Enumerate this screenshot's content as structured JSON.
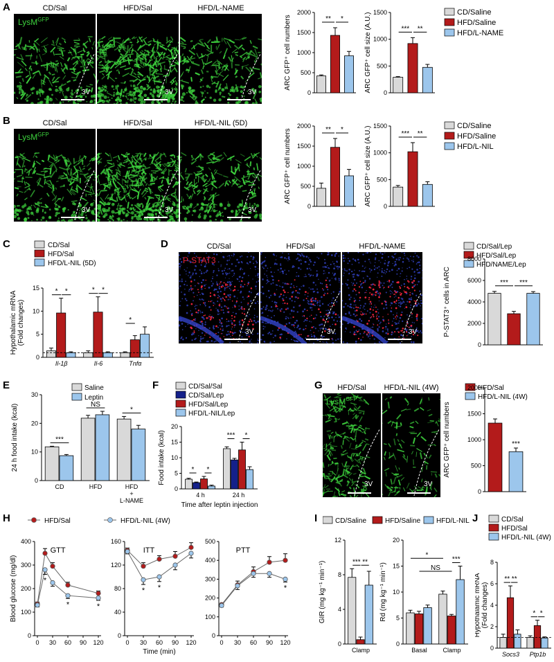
{
  "colors": {
    "gray": "#d9d9d9",
    "red": "#b31b1b",
    "blue": "#9cc6ec",
    "navy": "#14208a",
    "green": "#3dd13d",
    "pstat_red": "#e8243a",
    "pstat_blue": "#3344c8"
  },
  "panels": {
    "A": {
      "letter": "A",
      "images": [
        "CD/Sal",
        "HFD/Sal",
        "HFD/L-NAME"
      ],
      "lys": "LysM",
      "lys_sup": "GFP",
      "v3": "3V"
    },
    "B": {
      "letter": "B",
      "images": [
        "CD/Sal",
        "HFD/Sal",
        "HFD/L-NIL (5D)"
      ],
      "lys": "LysM",
      "lys_sup": "GFP",
      "v3": "3V"
    },
    "C": {
      "letter": "C"
    },
    "D": {
      "letter": "D",
      "images": [
        "CD/Sal",
        "HFD/Sal",
        "HFD/L-NAME"
      ],
      "pstat": "P-STAT3",
      "v3": "3V"
    },
    "E": {
      "letter": "E"
    },
    "F": {
      "letter": "F"
    },
    "G": {
      "letter": "G",
      "images": [
        "HFD/Sal",
        "HFD/L-NIL (4W)"
      ],
      "lys": "LysM",
      "lys_sup": "GFP",
      "v3": "3V"
    },
    "H": {
      "letter": "H"
    },
    "I": {
      "letter": "I"
    },
    "J": {
      "letter": "J"
    }
  },
  "chart_data": [
    {
      "id": "A1",
      "type": "bar",
      "categories": [
        "CD/Saline",
        "HFD/Saline",
        "HFD/L-NAME"
      ],
      "values": [
        420,
        1430,
        920
      ],
      "errors": [
        25,
        190,
        110
      ],
      "ylabel": "ARC GFP⁺ cell numbers",
      "ylim": [
        0,
        2000
      ],
      "yticks": [
        0,
        500,
        1000,
        1500,
        2000
      ],
      "sig": [
        {
          "from": 0,
          "to": 1,
          "label": "**"
        },
        {
          "from": 1,
          "to": 2,
          "label": "*"
        }
      ]
    },
    {
      "id": "A2",
      "type": "bar",
      "categories": [
        "CD/Saline",
        "HFD/Saline",
        "HFD/L-NAME"
      ],
      "values": [
        290,
        920,
        475
      ],
      "errors": [
        12,
        110,
        55
      ],
      "ylabel": "ARC GFP⁺ cell size (A.U.)",
      "ylim": [
        0,
        1500
      ],
      "yticks": [
        0,
        500,
        1000,
        1500
      ],
      "sig": [
        {
          "from": 0,
          "to": 1,
          "label": "***"
        },
        {
          "from": 1,
          "to": 2,
          "label": "**"
        }
      ]
    },
    {
      "id": "A_legend",
      "type": "legend",
      "entries": [
        "CD/Saline",
        "HFD/Saline",
        "HFD/L-NAME"
      ]
    },
    {
      "id": "B1",
      "type": "bar",
      "categories": [
        "CD/Saline",
        "HFD/Saline",
        "HFD/L-NIL"
      ],
      "values": [
        450,
        1470,
        760
      ],
      "errors": [
        130,
        220,
        160
      ],
      "ylabel": "ARC GFP⁺ cell numbers",
      "ylim": [
        0,
        2000
      ],
      "yticks": [
        0,
        500,
        1000,
        1500,
        2000
      ],
      "sig": [
        {
          "from": 0,
          "to": 1,
          "label": "**"
        },
        {
          "from": 1,
          "to": 2,
          "label": "*"
        }
      ]
    },
    {
      "id": "B2",
      "type": "bar",
      "categories": [
        "CD/Saline",
        "HFD/Saline",
        "HFD/L-NIL"
      ],
      "values": [
        360,
        1020,
        410
      ],
      "errors": [
        30,
        170,
        50
      ],
      "ylabel": "ARC GFP⁺ cell size (A.U.)",
      "ylim": [
        0,
        1500
      ],
      "yticks": [
        0,
        500,
        1000,
        1500
      ],
      "sig": [
        {
          "from": 0,
          "to": 1,
          "label": "***"
        },
        {
          "from": 1,
          "to": 2,
          "label": "**"
        }
      ]
    },
    {
      "id": "B_legend",
      "type": "legend",
      "entries": [
        "CD/Saline",
        "HFD/Saline",
        "HFD/L-NIL"
      ]
    },
    {
      "id": "C",
      "type": "bar",
      "categories": [
        "Il-1β",
        "Il-6",
        "Tnfα"
      ],
      "series": [
        {
          "name": "CD/Sal",
          "values": [
            1.4,
            1.0,
            1.0
          ],
          "errors": [
            0.6,
            0.4,
            0.2
          ]
        },
        {
          "name": "HFD/Sal",
          "values": [
            9.6,
            9.8,
            3.8
          ],
          "errors": [
            3.2,
            3.3,
            0.9
          ]
        },
        {
          "name": "HFD/L-NIL (5D)",
          "values": [
            1.0,
            1.0,
            5.0
          ],
          "errors": [
            0.2,
            0.2,
            1.6
          ]
        }
      ],
      "ylabel": "Hypothalamic mRNA\n(Fold changes)",
      "ylim": [
        0,
        15
      ],
      "yticks": [
        0,
        5,
        10,
        15
      ],
      "dashed_y": 1,
      "sig": [
        {
          "group": 0,
          "from": 0,
          "to": 1,
          "label": "*"
        },
        {
          "group": 0,
          "from": 1,
          "to": 2,
          "label": "*"
        },
        {
          "group": 1,
          "from": 0,
          "to": 1,
          "label": "*"
        },
        {
          "group": 1,
          "from": 1,
          "to": 2,
          "label": "*"
        },
        {
          "group": 2,
          "from": 0,
          "to": 1,
          "label": "*"
        }
      ]
    },
    {
      "id": "D",
      "type": "bar",
      "categories": [
        "CD/Sal/Lep",
        "HFD/Sal/Lep",
        "HFD/NAME/Lep"
      ],
      "values": [
        4800,
        2900,
        4800
      ],
      "errors": [
        180,
        220,
        160
      ],
      "ylabel": "P-STAT3⁺ cells in ARC",
      "ylim": [
        0,
        8000
      ],
      "yticks": [
        0,
        2000,
        4000,
        6000,
        8000
      ],
      "sig": [
        {
          "from": 0,
          "to": 1,
          "label": "***"
        },
        {
          "from": 1,
          "to": 2,
          "label": "***"
        }
      ]
    },
    {
      "id": "E",
      "type": "bar",
      "categories": [
        "CD",
        "HFD",
        "HFD\n+\nL-NAME"
      ],
      "series": [
        {
          "name": "Saline",
          "values": [
            11.8,
            21.8,
            21.5
          ],
          "errors": [
            0.2,
            1.0,
            0.9
          ]
        },
        {
          "name": "Leptin",
          "values": [
            8.7,
            23.0,
            18.0
          ],
          "errors": [
            0.4,
            1.2,
            1.3
          ]
        }
      ],
      "ylabel": "24 h food intake (kcal)",
      "ylim": [
        0,
        30
      ],
      "yticks": [
        0,
        10,
        20,
        30
      ],
      "sig": [
        {
          "group": 0,
          "label": "***"
        },
        {
          "group": 1,
          "label": "NS"
        },
        {
          "group": 2,
          "label": "*"
        }
      ]
    },
    {
      "id": "F",
      "type": "bar",
      "categories": [
        "4 h",
        "24 h"
      ],
      "series": [
        {
          "name": "CD/Sal/Sal",
          "values": [
            3.1,
            12.9
          ],
          "errors": [
            0.3,
            0.6
          ]
        },
        {
          "name": "CD/Sal/Lep",
          "values": [
            2.0,
            9.3
          ],
          "errors": [
            0.2,
            0.5
          ]
        },
        {
          "name": "HFD/Sal/Lep",
          "values": [
            3.2,
            12.5
          ],
          "errors": [
            0.8,
            2.5
          ]
        },
        {
          "name": "HFD/L-NIL/Lep",
          "values": [
            0.9,
            6.2
          ],
          "errors": [
            0.3,
            0.9
          ]
        }
      ],
      "xlabel": "Time after leptin injection",
      "ylabel": "Food intake (kcal)",
      "ylim": [
        0,
        20
      ],
      "yticks": [
        0,
        5,
        10,
        15,
        20
      ],
      "sig": [
        {
          "group": 0,
          "from": 0,
          "to": 1,
          "label": "*"
        },
        {
          "group": 0,
          "from": 2,
          "to": 3,
          "label": "*"
        },
        {
          "group": 1,
          "from": 0,
          "to": 1,
          "label": "***"
        },
        {
          "group": 1,
          "from": 2,
          "to": 3,
          "label": "*"
        }
      ]
    },
    {
      "id": "G",
      "type": "bar",
      "categories": [
        "HFD/Sal",
        "HFD/L-NIL (4W)"
      ],
      "values": [
        1320,
        770
      ],
      "errors": [
        80,
        70
      ],
      "ylabel": "ARC GFP⁺ cell numbers",
      "ylim": [
        0,
        2000
      ],
      "yticks": [
        0,
        500,
        1000,
        1500,
        2000
      ],
      "sig_single": "***"
    },
    {
      "id": "H_legend",
      "type": "legend",
      "entries": [
        "HFD/Sal",
        "HFD/L-NIL (4W)"
      ]
    },
    {
      "id": "H1",
      "type": "line",
      "title": "GTT",
      "x": [
        0,
        15,
        30,
        60,
        120
      ],
      "series": [
        {
          "name": "HFD/Sal",
          "values": [
            135,
            350,
            295,
            215,
            180
          ],
          "errors": [
            8,
            20,
            15,
            12,
            10
          ]
        },
        {
          "name": "HFD/L-NIL (4W)",
          "values": [
            130,
            280,
            225,
            170,
            160
          ],
          "errors": [
            8,
            20,
            15,
            12,
            10
          ]
        }
      ],
      "ylabel": "Blood glucose (mg/dl)",
      "ylim": [
        0,
        400
      ],
      "yticks": [
        0,
        100,
        200,
        300,
        400
      ],
      "xticks": [
        0,
        30,
        60,
        90,
        120
      ],
      "stars": [
        {
          "x": 15,
          "label": "*"
        },
        {
          "x": 60,
          "label": "*"
        },
        {
          "x": 120,
          "label": "*"
        }
      ]
    },
    {
      "id": "H2",
      "type": "line",
      "title": "ITT",
      "x": [
        0,
        30,
        60,
        90,
        120
      ],
      "series": [
        {
          "name": "HFD/Sal",
          "values": [
            145,
            118,
            130,
            135,
            150
          ],
          "errors": [
            4,
            6,
            6,
            8,
            8
          ]
        },
        {
          "name": "HFD/L-NIL (4W)",
          "values": [
            143,
            95,
            100,
            120,
            140
          ],
          "errors": [
            4,
            8,
            8,
            8,
            8
          ]
        }
      ],
      "xlabel": "Time (min)",
      "ylim": [
        0,
        160
      ],
      "yticks": [
        0,
        40,
        80,
        120,
        160
      ],
      "xticks": [
        0,
        30,
        60,
        90,
        120
      ],
      "stars": [
        {
          "x": 30,
          "label": "*"
        },
        {
          "x": 60,
          "label": "*"
        }
      ]
    },
    {
      "id": "H3",
      "type": "line",
      "title": "PTT",
      "x": [
        0,
        30,
        60,
        90,
        120
      ],
      "series": [
        {
          "name": "HFD/Sal",
          "values": [
            165,
            270,
            340,
            390,
            400
          ],
          "errors": [
            8,
            20,
            25,
            30,
            35
          ]
        },
        {
          "name": "HFD/L-NIL (4W)",
          "values": [
            160,
            265,
            330,
            330,
            300
          ],
          "errors": [
            8,
            20,
            20,
            20,
            15
          ]
        }
      ],
      "ylim": [
        0,
        500
      ],
      "yticks": [
        0,
        100,
        200,
        300,
        400,
        500
      ],
      "xticks": [
        0,
        30,
        60,
        90,
        120
      ],
      "stars": [
        {
          "x": 120,
          "label": "*"
        }
      ]
    },
    {
      "id": "I_legend",
      "type": "legend",
      "entries": [
        "CD/Saline",
        "HFD/Saline",
        "HFD/L-NIL"
      ]
    },
    {
      "id": "I1",
      "type": "bar",
      "categories": [
        "Clamp"
      ],
      "series": [
        {
          "name": "CD/Saline",
          "values": [
            7.7
          ],
          "errors": [
            1.0
          ]
        },
        {
          "name": "HFD/Saline",
          "values": [
            0.5
          ],
          "errors": [
            0.3
          ]
        },
        {
          "name": "HFD/L-NIL",
          "values": [
            6.8
          ],
          "errors": [
            1.6
          ]
        }
      ],
      "ylabel": "GIR (mg kg⁻¹ min⁻¹)",
      "ylim": [
        0,
        12
      ],
      "yticks": [
        0,
        4,
        8,
        12
      ],
      "sig": [
        {
          "group": 0,
          "from": 0,
          "to": 1,
          "label": "***"
        },
        {
          "group": 0,
          "from": 1,
          "to": 2,
          "label": "**"
        }
      ]
    },
    {
      "id": "I2",
      "type": "bar",
      "categories": [
        "Basal",
        "Clamp"
      ],
      "series": [
        {
          "name": "CD/Saline",
          "values": [
            6.0,
            9.6
          ],
          "errors": [
            0.5,
            0.6
          ]
        },
        {
          "name": "HFD/Saline",
          "values": [
            5.8,
            5.4
          ],
          "errors": [
            0.5,
            0.3
          ]
        },
        {
          "name": "HFD/L-NIL",
          "values": [
            7.0,
            12.4
          ],
          "errors": [
            0.5,
            2.6
          ]
        }
      ],
      "ylabel": "Rd (mg kg⁻¹ min⁻¹)",
      "ylim": [
        0,
        20
      ],
      "yticks": [
        0,
        5,
        10,
        15,
        20
      ],
      "sig": [
        {
          "group": 1,
          "from": 1,
          "to": 2,
          "label": "***"
        }
      ],
      "cross_sig": [
        {
          "from": [
            0,
            0
          ],
          "to": [
            1,
            0
          ],
          "label": "*"
        },
        {
          "from": [
            0,
            1
          ],
          "to": [
            1,
            1
          ],
          "label": "NS"
        }
      ]
    },
    {
      "id": "J",
      "type": "bar",
      "categories": [
        "Socs3",
        "Ptp1b"
      ],
      "series": [
        {
          "name": "CD/Sal",
          "values": [
            1.0,
            1.0
          ],
          "errors": [
            0.3,
            0.15
          ]
        },
        {
          "name": "HFD/Sal",
          "values": [
            4.7,
            2.1
          ],
          "errors": [
            1.1,
            0.5
          ]
        },
        {
          "name": "HFD/L-NIL (4W)",
          "values": [
            1.3,
            0.95
          ],
          "errors": [
            0.4,
            0.1
          ]
        }
      ],
      "ylabel": "Hypothalamic mRNA\n(Fold changes)",
      "ylim": [
        0,
        8
      ],
      "yticks": [
        0,
        2,
        4,
        6,
        8
      ],
      "dashed_y": 1,
      "sig": [
        {
          "group": 0,
          "from": 0,
          "to": 1,
          "label": "**"
        },
        {
          "group": 0,
          "from": 1,
          "to": 2,
          "label": "**"
        },
        {
          "group": 1,
          "from": 0,
          "to": 1,
          "label": "*"
        },
        {
          "group": 1,
          "from": 1,
          "to": 2,
          "label": "*"
        }
      ]
    }
  ]
}
